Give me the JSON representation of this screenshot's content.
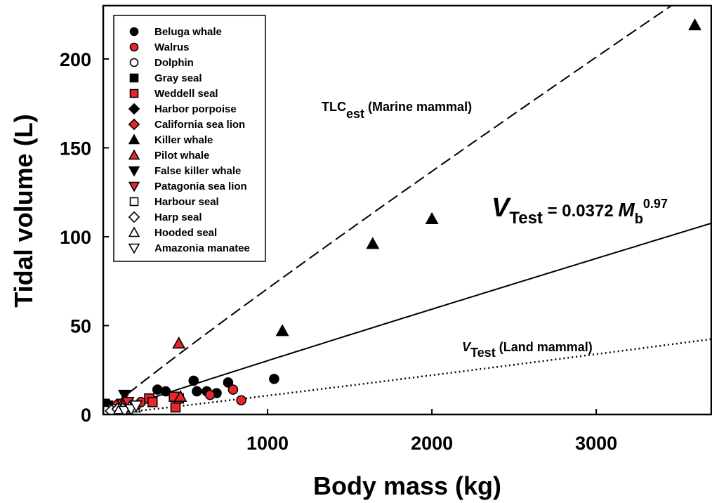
{
  "chart_data": {
    "type": "scatter",
    "xlabel": "Body mass (kg)",
    "ylabel": "Tidal volume (L)",
    "xlim": [
      0,
      3700
    ],
    "ylim": [
      0,
      230
    ],
    "x_ticks": [
      {
        "value": 1000,
        "label": "1000"
      },
      {
        "value": 2000,
        "label": "2000"
      },
      {
        "value": 3000,
        "label": "3000"
      }
    ],
    "y_ticks": [
      {
        "value": 0,
        "label": "0"
      },
      {
        "value": 50,
        "label": "50"
      },
      {
        "value": 100,
        "label": "100"
      },
      {
        "value": 150,
        "label": "150"
      },
      {
        "value": 200,
        "label": "200"
      }
    ],
    "grid": false,
    "legend_position": "top-left",
    "series": [
      {
        "name": "Beluga whale",
        "marker": "circle",
        "fill": "#000000",
        "points": [
          [
            330,
            14
          ],
          [
            380,
            13
          ],
          [
            550,
            19
          ],
          [
            570,
            13
          ],
          [
            630,
            13
          ],
          [
            690,
            12
          ],
          [
            760,
            18
          ],
          [
            1040,
            20
          ]
        ]
      },
      {
        "name": "Walrus",
        "marker": "circle",
        "fill": "#e8262b",
        "points": [
          [
            650,
            11
          ],
          [
            790,
            14
          ],
          [
            840,
            8
          ],
          [
            200,
            5
          ],
          [
            230,
            7
          ]
        ]
      },
      {
        "name": "Dolphin",
        "marker": "circle",
        "fill": "#ffffff",
        "points": [
          [
            20,
            1
          ],
          [
            40,
            2
          ],
          [
            60,
            2
          ],
          [
            80,
            2
          ],
          [
            100,
            3
          ],
          [
            120,
            3
          ],
          [
            150,
            3
          ],
          [
            170,
            4
          ]
        ]
      },
      {
        "name": "Gray seal",
        "marker": "square",
        "fill": "#000000",
        "points": [
          [
            10,
            6
          ],
          [
            30,
            5
          ],
          [
            60,
            4
          ]
        ]
      },
      {
        "name": "Weddell seal",
        "marker": "square",
        "fill": "#e8262b",
        "points": [
          [
            280,
            9
          ],
          [
            300,
            7
          ],
          [
            440,
            4
          ],
          [
            460,
            9
          ],
          [
            430,
            10
          ]
        ]
      },
      {
        "name": "Harbor porpoise",
        "marker": "diamond",
        "fill": "#000000",
        "points": [
          [
            20,
            2
          ],
          [
            35,
            3
          ]
        ]
      },
      {
        "name": "California sea lion",
        "marker": "diamond",
        "fill": "#e8262b",
        "points": [
          [
            50,
            3
          ],
          [
            80,
            5
          ],
          [
            100,
            4
          ]
        ]
      },
      {
        "name": "Killer whale",
        "marker": "triangle-up",
        "fill": "#000000",
        "points": [
          [
            1090,
            47
          ],
          [
            1640,
            96
          ],
          [
            2000,
            110
          ],
          [
            3600,
            219
          ]
        ]
      },
      {
        "name": "Pilot whale",
        "marker": "triangle-up",
        "fill": "#e8262b",
        "points": [
          [
            460,
            40
          ],
          [
            470,
            10
          ]
        ]
      },
      {
        "name": "False killer whale",
        "marker": "triangle-down",
        "fill": "#000000",
        "points": [
          [
            130,
            11
          ]
        ]
      },
      {
        "name": "Patagonia sea lion",
        "marker": "triangle-down",
        "fill": "#e8262b",
        "points": [
          [
            120,
            6
          ],
          [
            140,
            5
          ],
          [
            150,
            7
          ]
        ]
      },
      {
        "name": "Harbour seal",
        "marker": "square",
        "fill": "#ffffff",
        "points": [
          [
            30,
            2
          ],
          [
            60,
            3
          ],
          [
            70,
            3
          ]
        ]
      },
      {
        "name": "Harp seal",
        "marker": "diamond",
        "fill": "#ffffff",
        "points": [
          [
            50,
            2
          ],
          [
            90,
            3
          ],
          [
            120,
            3
          ]
        ]
      },
      {
        "name": "Hooded seal",
        "marker": "triangle-up",
        "fill": "#ffffff",
        "points": [
          [
            100,
            3
          ],
          [
            160,
            4
          ],
          [
            190,
            4
          ]
        ]
      },
      {
        "name": "Amazonia manatee",
        "marker": "triangle-down",
        "fill": "#ffffff",
        "points": [
          [
            130,
            2
          ],
          [
            170,
            3
          ],
          [
            200,
            5
          ]
        ]
      }
    ],
    "lines": [
      {
        "name": "TLC est (Marine mammal)",
        "style": "dashed",
        "a": 0.1,
        "b": 0.95
      },
      {
        "name": "V Test = 0.0372 Mb^0.97",
        "style": "solid",
        "a": 0.0372,
        "b": 0.97
      },
      {
        "name": "V Test (Land mammal)",
        "style": "dotted",
        "a": 0.007,
        "b": 1.06
      }
    ],
    "annotations": {
      "tlc_main": "TLC",
      "tlc_sub": "est",
      "tlc_tail": " (Marine mammal)",
      "eq_v": "V",
      "eq_sub": "Test",
      "eq_mid": " = 0.0372 ",
      "eq_m": "M",
      "eq_msub": "b",
      "eq_sup": "0.97",
      "land_v": "V",
      "land_sub": "Test",
      "land_tail": " (Land mammal)"
    }
  }
}
